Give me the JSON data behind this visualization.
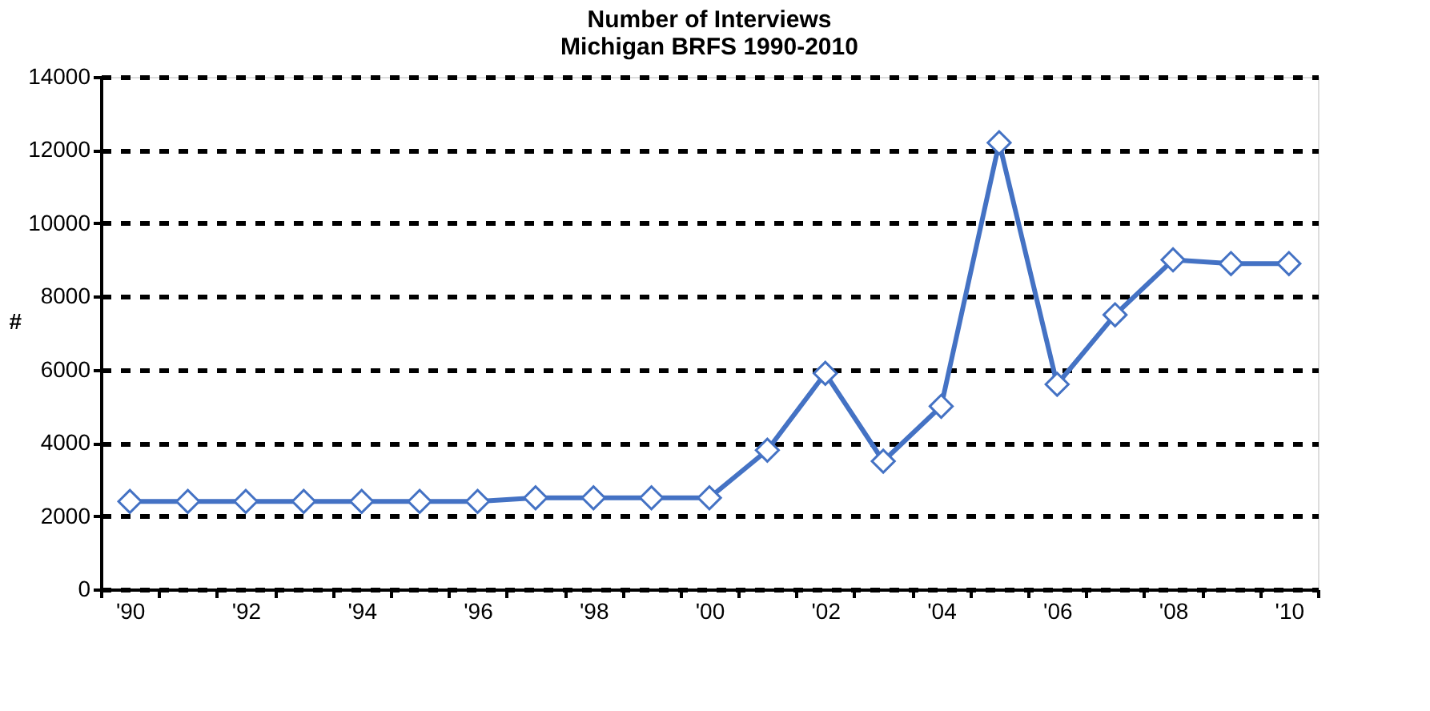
{
  "chart_data": {
    "type": "line",
    "title": "Number of Interviews\nMichigan BRFS 1990-2010",
    "ylabel": "#",
    "categories": [
      "'90",
      null,
      "'92",
      null,
      "'94",
      null,
      "'96",
      null,
      "'98",
      null,
      "'00",
      null,
      "'02",
      null,
      "'04",
      null,
      "'06",
      null,
      "'08",
      null,
      "'10"
    ],
    "series": [
      {
        "color": "#4472c4",
        "values": [
          2400,
          2400,
          2400,
          2400,
          2400,
          2400,
          2400,
          2500,
          2500,
          2500,
          2500,
          3800,
          5900,
          3500,
          5000,
          12200,
          5600,
          7500,
          9000,
          8900,
          8900
        ]
      }
    ],
    "ylim": [
      0,
      14000
    ],
    "yticks": [
      0,
      2000,
      4000,
      6000,
      8000,
      10000,
      12000,
      14000
    ],
    "grid": "y",
    "legend": false,
    "marker": "diamond",
    "line_style": "solid"
  }
}
